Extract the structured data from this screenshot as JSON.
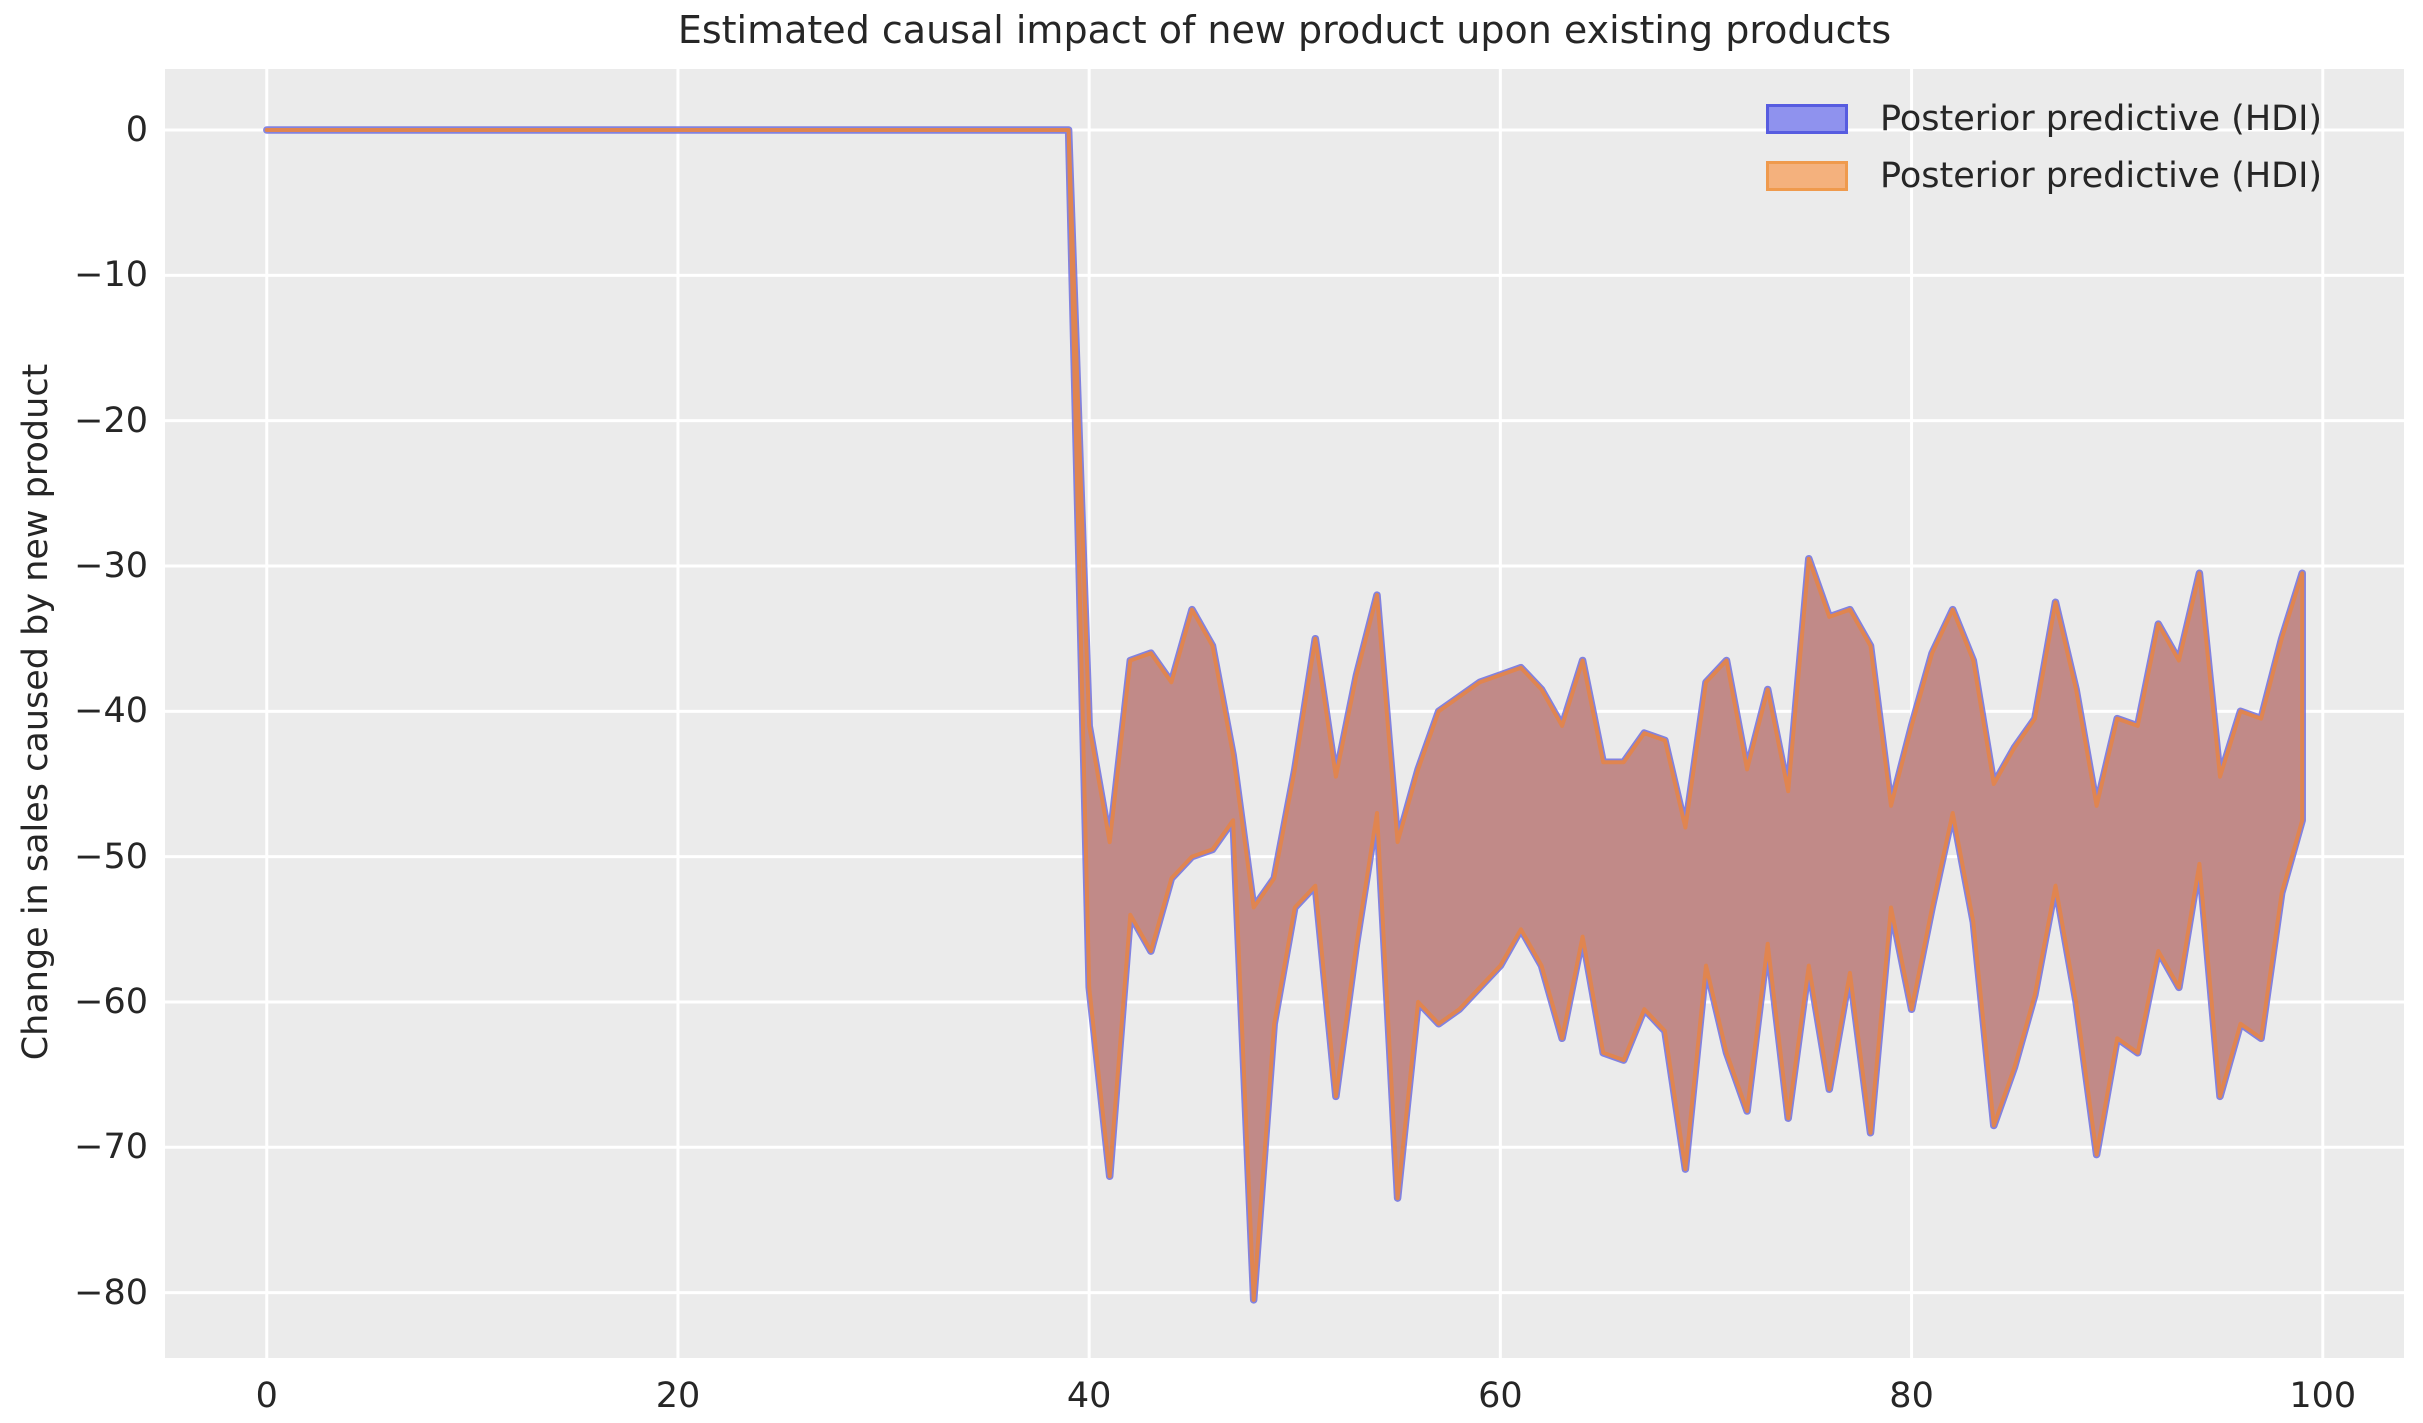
{
  "title": "Estimated causal impact of new product upon existing products",
  "ylabel": "Change in sales caused by new product",
  "legend": [
    {
      "label": "Posterior predictive (HDI)",
      "fill": "#8f92ee",
      "edge": "#575ce0"
    },
    {
      "label": "Posterior predictive (HDI)",
      "fill": "#f4b17d",
      "edge": "#ef9a4d"
    }
  ],
  "colors": {
    "plot_background": "#ebebeb",
    "figure_background": "#ffffff",
    "grid": "#ffffff",
    "text": "#262626",
    "band_fill": "#c18a88",
    "band_edge_orange": "#e08550",
    "band_edge_blue": "#7070dd"
  },
  "chart_data": {
    "type": "area",
    "title": "Estimated causal impact of new product upon existing products",
    "xlabel": "",
    "ylabel": "Change in sales caused by new product",
    "grid": true,
    "legend_position": "upper right",
    "xlim": [
      -4.95,
      103.95
    ],
    "ylim": [
      -84.5,
      4.2
    ],
    "x_ticks": [
      0,
      20,
      40,
      60,
      80,
      100
    ],
    "x_tick_labels": [
      "0",
      "20",
      "40",
      "60",
      "80",
      "100"
    ],
    "y_ticks": [
      0,
      -10,
      -20,
      -30,
      -40,
      -50,
      -60,
      -70,
      -80
    ],
    "y_tick_labels": [
      "0",
      "−10",
      "−20",
      "−30",
      "−40",
      "−50",
      "−60",
      "−70",
      "−80"
    ],
    "description": "Two nearly identical HDI bands (blue and orange, semi-transparent) overlap to form a brownish band. Counterfactual impact is 0 for x=0..39, then drops to a fluctuating band for x=40..99.",
    "series": [
      {
        "name": "Posterior predictive (HDI)",
        "color": "blue",
        "band": "shared"
      },
      {
        "name": "Posterior predictive (HDI)",
        "color": "orange",
        "band": "shared"
      }
    ],
    "x": [
      0,
      1,
      2,
      3,
      4,
      5,
      6,
      7,
      8,
      9,
      10,
      11,
      12,
      13,
      14,
      15,
      16,
      17,
      18,
      19,
      20,
      21,
      22,
      23,
      24,
      25,
      26,
      27,
      28,
      29,
      30,
      31,
      32,
      33,
      34,
      35,
      36,
      37,
      38,
      39,
      40,
      41,
      42,
      43,
      44,
      45,
      46,
      47,
      48,
      49,
      50,
      51,
      52,
      53,
      54,
      55,
      56,
      57,
      58,
      59,
      60,
      61,
      62,
      63,
      64,
      65,
      66,
      67,
      68,
      69,
      70,
      71,
      72,
      73,
      74,
      75,
      76,
      77,
      78,
      79,
      80,
      81,
      82,
      83,
      84,
      85,
      86,
      87,
      88,
      89,
      90,
      91,
      92,
      93,
      94,
      95,
      96,
      97,
      98,
      99
    ],
    "band_upper": [
      0,
      0,
      0,
      0,
      0,
      0,
      0,
      0,
      0,
      0,
      0,
      0,
      0,
      0,
      0,
      0,
      0,
      0,
      0,
      0,
      0,
      0,
      0,
      0,
      0,
      0,
      0,
      0,
      0,
      0,
      0,
      0,
      0,
      0,
      0,
      0,
      0,
      0,
      0,
      0,
      -41,
      -49,
      -36.5,
      -36,
      -38,
      -33,
      -35.5,
      -43,
      -53.5,
      -51.5,
      -44,
      -35,
      -44.5,
      -37.5,
      -32,
      -49,
      -44,
      -40,
      -39,
      -38,
      -37.5,
      -37,
      -38.5,
      -41,
      -36.5,
      -43.5,
      -43.5,
      -41.5,
      -42,
      -48,
      -38,
      -36.5,
      -44,
      -38.5,
      -45.5,
      -29.5,
      -33.5,
      -33,
      -35.5,
      -46.5,
      -41,
      -36,
      -33,
      -36.5,
      -45,
      -42.5,
      -40.5,
      -32.5,
      -38.5,
      -46.5,
      -40.5,
      -41,
      -34,
      -36.5,
      -30.5,
      -44.5,
      -40,
      -40.5,
      -35,
      -30.5
    ],
    "band_lower": [
      0,
      0,
      0,
      0,
      0,
      0,
      0,
      0,
      0,
      0,
      0,
      0,
      0,
      0,
      0,
      0,
      0,
      0,
      0,
      0,
      0,
      0,
      0,
      0,
      0,
      0,
      0,
      0,
      0,
      0,
      0,
      0,
      0,
      0,
      0,
      0,
      0,
      0,
      0,
      0,
      -59,
      -72,
      -54,
      -56.5,
      -51.5,
      -50,
      -49.5,
      -47.5,
      -80.5,
      -61.5,
      -53.5,
      -52,
      -66.5,
      -56,
      -47,
      -73.5,
      -60,
      -61.5,
      -60.5,
      -59,
      -57.5,
      -55,
      -57.5,
      -62.5,
      -55.5,
      -63.5,
      -64,
      -60.5,
      -62,
      -71.5,
      -57.5,
      -63.5,
      -67.5,
      -56,
      -68,
      -57.5,
      -66,
      -58,
      -69,
      -53.5,
      -60.5,
      -53.5,
      -47,
      -54.5,
      -68.5,
      -64.5,
      -59.5,
      -52,
      -60,
      -70.5,
      -62.5,
      -63.5,
      -56.5,
      -59,
      -50.5,
      -66.5,
      -61.5,
      -62.5,
      -52.5,
      -47.5
    ]
  }
}
